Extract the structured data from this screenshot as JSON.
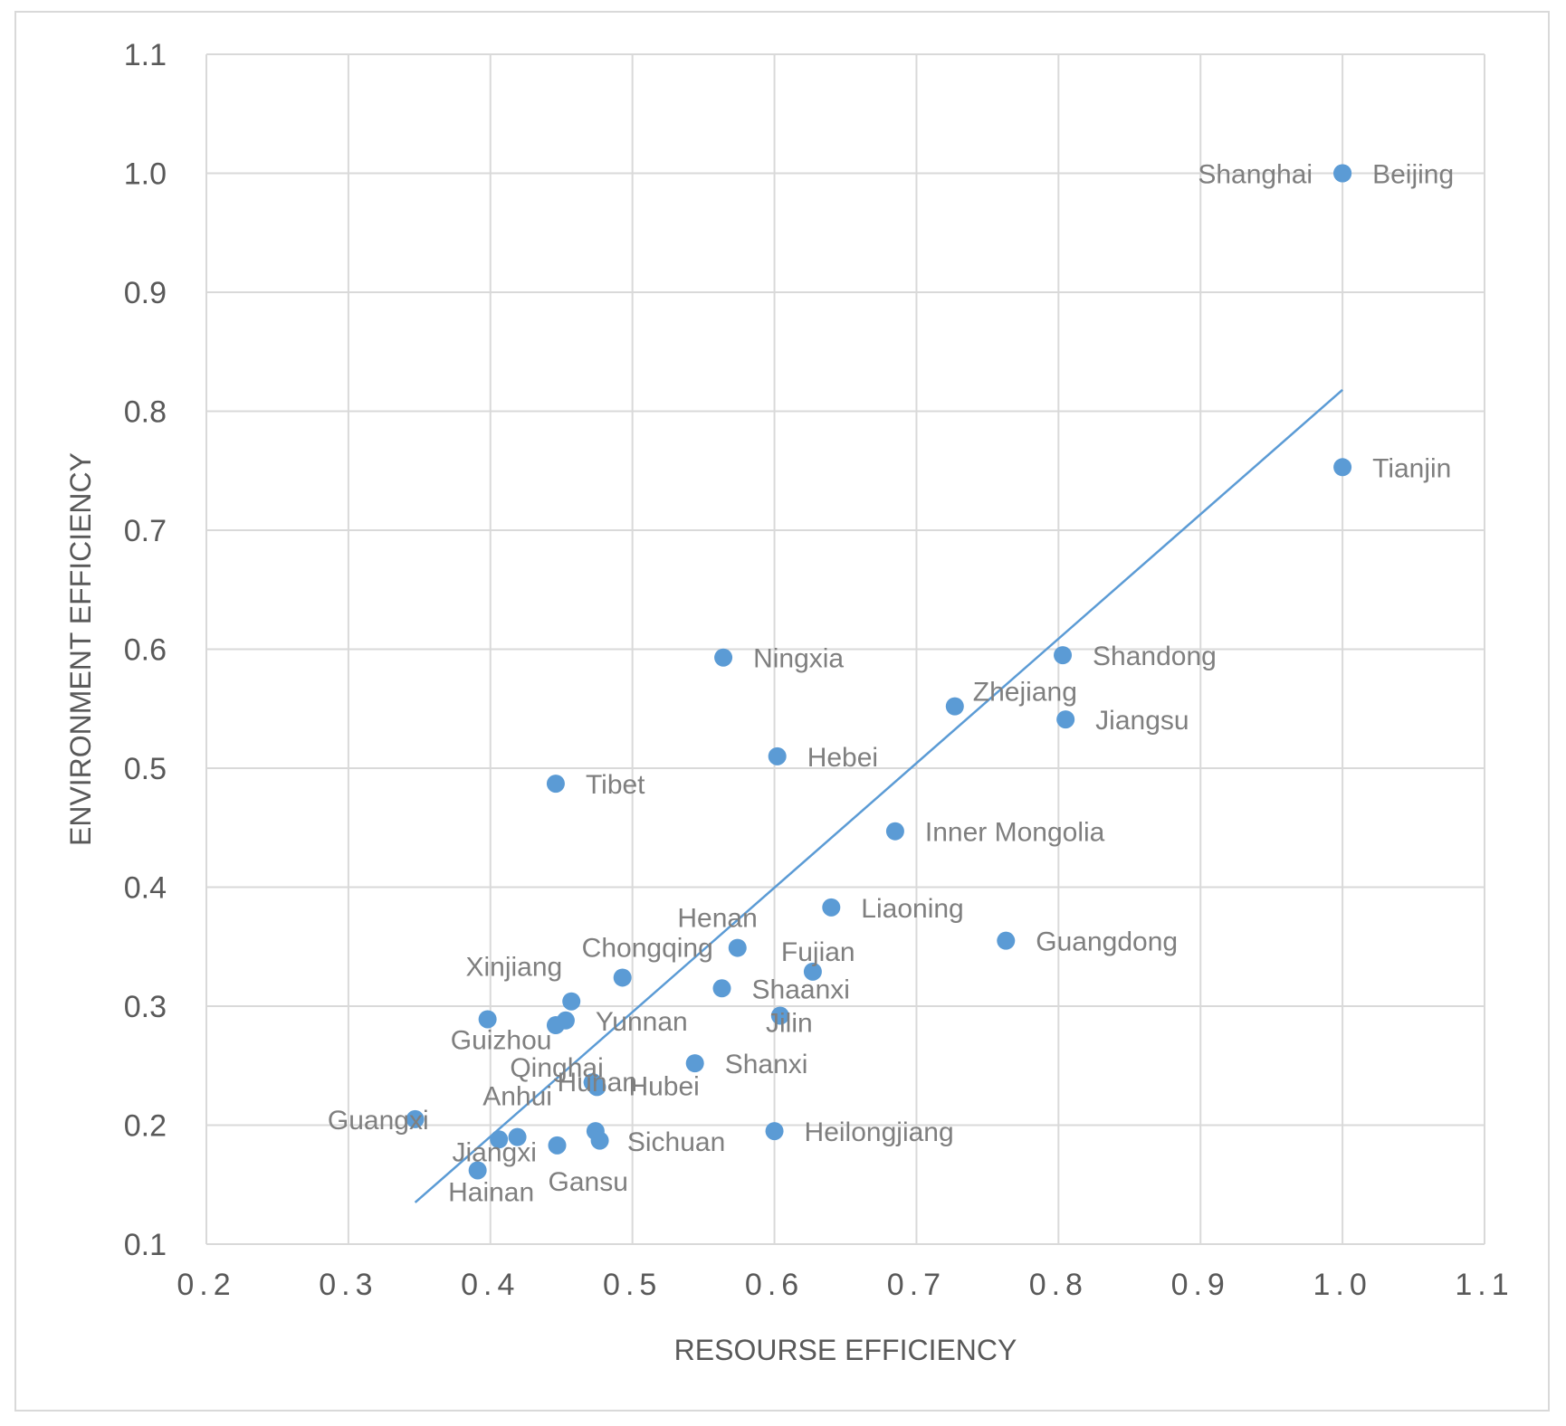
{
  "chart_data": {
    "type": "scatter",
    "title": "",
    "xlabel": "RESOURSE EFFICIENCY",
    "ylabel": "ENVIRONMENT EFFICIENCY",
    "xlim": [
      0.2,
      1.1
    ],
    "ylim": [
      0.1,
      1.1
    ],
    "x_ticks": [
      0.2,
      0.3,
      0.4,
      0.5,
      0.6,
      0.7,
      0.8,
      0.9,
      1.0,
      1.1
    ],
    "y_ticks": [
      0.1,
      0.2,
      0.3,
      0.4,
      0.5,
      0.6,
      0.7,
      0.8,
      0.9,
      1.0,
      1.1
    ],
    "x_tick_labels": [
      "0.2",
      "0.3",
      "0.4",
      "0.5",
      "0.6",
      "0.7",
      "0.8",
      "0.9",
      "1.0",
      "1.1"
    ],
    "y_tick_labels": [
      "0.1",
      "0.2",
      "0.3",
      "0.4",
      "0.5",
      "0.6",
      "0.7",
      "0.8",
      "0.9",
      "1.0",
      "1.1"
    ],
    "grid": true,
    "marker_color": "#5b9bd5",
    "trendline_color": "#5b9bd5",
    "trendline": {
      "x": [
        0.347,
        1.0
      ],
      "y": [
        0.135,
        0.818
      ]
    },
    "points": [
      {
        "label": "Beijing",
        "x": 1.0,
        "y": 1.0,
        "label_pos": "right"
      },
      {
        "label": "Shanghai",
        "x": 1.0,
        "y": 1.0,
        "label_pos": "left"
      },
      {
        "label": "Tianjin",
        "x": 1.0,
        "y": 0.753,
        "label_pos": "right"
      },
      {
        "label": "Shandong",
        "x": 0.803,
        "y": 0.595,
        "label_pos": "right"
      },
      {
        "label": "Jiangsu",
        "x": 0.805,
        "y": 0.541,
        "label_pos": "right"
      },
      {
        "label": "Zhejiang",
        "x": 0.727,
        "y": 0.552,
        "label_pos": "above-right"
      },
      {
        "label": "Ningxia",
        "x": 0.564,
        "y": 0.593,
        "label_pos": "right"
      },
      {
        "label": "Hebei",
        "x": 0.602,
        "y": 0.51,
        "label_pos": "right"
      },
      {
        "label": "Tibet",
        "x": 0.446,
        "y": 0.487,
        "label_pos": "right"
      },
      {
        "label": "Inner Mongolia",
        "x": 0.685,
        "y": 0.447,
        "label_pos": "right"
      },
      {
        "label": "Liaoning",
        "x": 0.64,
        "y": 0.383,
        "label_pos": "right"
      },
      {
        "label": "Guangdong",
        "x": 0.763,
        "y": 0.355,
        "label_pos": "right"
      },
      {
        "label": "Henan",
        "x": 0.574,
        "y": 0.349,
        "label_pos": "above-left"
      },
      {
        "label": "Fujian",
        "x": 0.627,
        "y": 0.329,
        "label_pos": "above-right"
      },
      {
        "label": "Chongqing",
        "x": 0.493,
        "y": 0.324,
        "label_pos": "above-right"
      },
      {
        "label": "Shaanxi",
        "x": 0.563,
        "y": 0.315,
        "label_pos": "right"
      },
      {
        "label": "Xinjiang",
        "x": 0.457,
        "y": 0.304,
        "label_pos": "above-left"
      },
      {
        "label": "Jilin",
        "x": 0.604,
        "y": 0.292,
        "label_pos": "below"
      },
      {
        "label": "Yunnan",
        "x": 0.453,
        "y": 0.288,
        "label_pos": "right"
      },
      {
        "label": "Guizhou",
        "x": 0.398,
        "y": 0.289,
        "label_pos": "below"
      },
      {
        "label": "Guizhou-2",
        "x": 0.446,
        "y": 0.284,
        "label_pos": "none"
      },
      {
        "label": "Shanxi",
        "x": 0.544,
        "y": 0.252,
        "label_pos": "right"
      },
      {
        "label": "Qinghai",
        "x": 0.472,
        "y": 0.236,
        "label_pos": "above-left"
      },
      {
        "label": "Hunan",
        "x": 0.472,
        "y": 0.236,
        "label_pos": "below"
      },
      {
        "label": "Hubei",
        "x": 0.475,
        "y": 0.232,
        "label_pos": "right"
      },
      {
        "label": "Anhui",
        "x": 0.419,
        "y": 0.19,
        "label_pos": "above"
      },
      {
        "label": "Guangxi",
        "x": 0.347,
        "y": 0.205,
        "label_pos": "left-over"
      },
      {
        "label": "Jiangxi",
        "x": 0.406,
        "y": 0.188,
        "label_pos": "below"
      },
      {
        "label": "Sichuan",
        "x": 0.474,
        "y": 0.195,
        "label_pos": "right-below"
      },
      {
        "label": "Sichuan-2",
        "x": 0.477,
        "y": 0.187,
        "label_pos": "none"
      },
      {
        "label": "Gansu",
        "x": 0.447,
        "y": 0.183,
        "label_pos": "below-right"
      },
      {
        "label": "Heilongjiang",
        "x": 0.6,
        "y": 0.195,
        "label_pos": "right"
      },
      {
        "label": "Hainan",
        "x": 0.391,
        "y": 0.162,
        "label_pos": "below"
      }
    ]
  }
}
